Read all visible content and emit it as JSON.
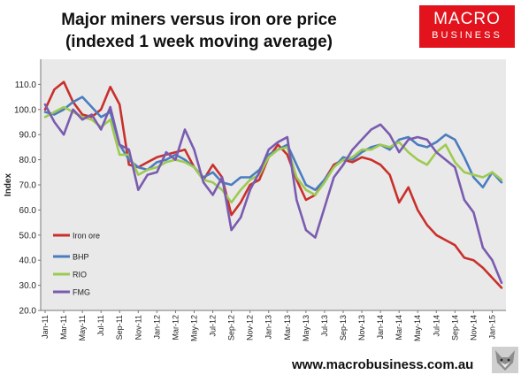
{
  "title": {
    "line1": "Major miners versus iron ore price",
    "line2": "(indexed 1 week moving average)"
  },
  "logo": {
    "line1": "MACRO",
    "line2": "BUSINESS"
  },
  "footer": {
    "url": "www.macrobusiness.com.au"
  },
  "colors": {
    "plot_bg": "#e9e9e9",
    "brand_red": "#e2131c"
  },
  "chart_data": {
    "type": "line",
    "ylabel": "Index",
    "xlabel": "",
    "ylim": [
      20,
      120
    ],
    "yticks": [
      "20.0",
      "30.0",
      "40.0",
      "50.0",
      "60.0",
      "70.0",
      "80.0",
      "90.0",
      "100.0",
      "110.0"
    ],
    "xtick_labels": [
      "Jan-11",
      "Mar-11",
      "May-11",
      "Jul-11",
      "Sep-11",
      "Nov-11",
      "Jan-12",
      "Mar-12",
      "May-12",
      "Jul-12",
      "Sep-12",
      "Nov-12",
      "Jan-13",
      "Mar-13",
      "May-13",
      "Jul-13",
      "Sep-13",
      "Nov-13",
      "Jan-14",
      "Mar-14",
      "May-14",
      "Jul-14",
      "Sep-14",
      "Nov-14",
      "Jan-15"
    ],
    "x": [
      "Jan-11",
      "Feb-11",
      "Mar-11",
      "Apr-11",
      "May-11",
      "Jun-11",
      "Jul-11",
      "Aug-11",
      "Sep-11",
      "Oct-11",
      "Nov-11",
      "Dec-11",
      "Jan-12",
      "Feb-12",
      "Mar-12",
      "Apr-12",
      "May-12",
      "Jun-12",
      "Jul-12",
      "Aug-12",
      "Sep-12",
      "Oct-12",
      "Nov-12",
      "Dec-12",
      "Jan-13",
      "Feb-13",
      "Mar-13",
      "Apr-13",
      "May-13",
      "Jun-13",
      "Jul-13",
      "Aug-13",
      "Sep-13",
      "Oct-13",
      "Nov-13",
      "Dec-13",
      "Jan-14",
      "Feb-14",
      "Mar-14",
      "Apr-14",
      "May-14",
      "Jun-14",
      "Jul-14",
      "Aug-14",
      "Sep-14",
      "Oct-14",
      "Nov-14",
      "Dec-14",
      "Jan-15",
      "Feb-15"
    ],
    "grid": false,
    "legend_position": "lower-left",
    "series": [
      {
        "name": "Iron ore",
        "color": "#c9302c",
        "values": [
          100,
          108,
          111,
          103,
          98,
          97,
          100,
          109,
          102,
          78,
          77,
          79,
          81,
          82,
          83,
          84,
          77,
          72,
          78,
          73,
          58,
          63,
          70,
          72,
          81,
          86,
          82,
          72,
          64,
          66,
          72,
          78,
          80,
          79,
          81,
          80,
          78,
          74,
          63,
          69,
          60,
          54,
          50,
          48,
          46,
          41,
          40,
          37,
          33,
          29
        ]
      },
      {
        "name": "BHP",
        "color": "#4a7dbf",
        "values": [
          99,
          98,
          100,
          103,
          105,
          101,
          97,
          99,
          86,
          80,
          77,
          76,
          79,
          80,
          82,
          80,
          77,
          73,
          75,
          71,
          70,
          73,
          73,
          76,
          82,
          84,
          86,
          78,
          70,
          68,
          72,
          77,
          81,
          80,
          83,
          85,
          86,
          84,
          88,
          89,
          86,
          85,
          87,
          90,
          88,
          81,
          73,
          69,
          75,
          71
        ]
      },
      {
        "name": "RIO",
        "color": "#9dca52",
        "values": [
          97,
          99,
          101,
          99,
          97,
          96,
          93,
          96,
          82,
          82,
          74,
          76,
          77,
          79,
          80,
          79,
          77,
          72,
          71,
          68,
          63,
          68,
          72,
          74,
          81,
          84,
          85,
          73,
          68,
          66,
          71,
          77,
          80,
          81,
          84,
          84,
          86,
          85,
          87,
          83,
          80,
          78,
          83,
          86,
          79,
          75,
          74,
          73,
          75,
          72
        ]
      },
      {
        "name": "FMG",
        "color": "#7a5bb0",
        "values": [
          102,
          95,
          90,
          100,
          96,
          98,
          92,
          101,
          86,
          84,
          68,
          74,
          75,
          83,
          80,
          92,
          84,
          71,
          66,
          73,
          52,
          57,
          68,
          75,
          84,
          87,
          89,
          64,
          52,
          49,
          61,
          73,
          78,
          84,
          88,
          92,
          94,
          90,
          83,
          88,
          89,
          88,
          83,
          80,
          77,
          64,
          59,
          45,
          40,
          31
        ]
      }
    ]
  }
}
